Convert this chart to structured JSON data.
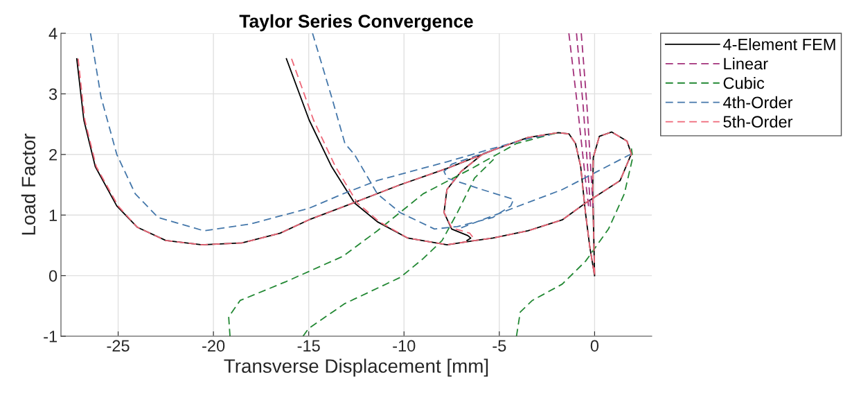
{
  "chart_data": {
    "type": "line",
    "title": "Taylor Series Convergence",
    "xlabel": "Transverse Displacement [mm]",
    "ylabel": "Load Factor",
    "xlim": [
      -28,
      3
    ],
    "ylim": [
      -1,
      4
    ],
    "xticks": [
      -25,
      -20,
      -15,
      -10,
      -5,
      0
    ],
    "yticks": [
      -1,
      0,
      1,
      2,
      3,
      4
    ],
    "grid": true,
    "legend": "right",
    "series": [
      {
        "name": "4-Element FEM",
        "color": "#000000",
        "line_style": "solid",
        "x": [
          -27.17,
          -26.8,
          -26.2,
          -25.07,
          -24.0,
          -22.5,
          -20.6,
          -18.5,
          -16.5,
          -15.0,
          -13.08,
          -10.2,
          -7.74,
          -5.9,
          -5.34,
          -3.5,
          -1.9,
          -1.35,
          -1.0,
          -0.73,
          -0.48,
          -0.25,
          0,
          null,
          -16.17,
          -14.98,
          -13.8,
          -12.6,
          -11.4,
          -9.8,
          -7.74,
          -6.5,
          -5.34,
          -3.5,
          -1.7,
          -0.47,
          1.34,
          1.93,
          1.7,
          0.9,
          0.25,
          -0.07,
          -0.1,
          -0.05,
          0,
          null,
          -6.7,
          -6.5,
          -6.65,
          -7.5,
          -7.9,
          -7.75,
          -7.0,
          -5.9,
          -5.34
        ],
        "values": [
          3.58,
          2.57,
          1.8,
          1.15,
          0.8,
          0.58,
          0.51,
          0.54,
          0.7,
          0.92,
          1.15,
          1.5,
          1.77,
          2.0,
          2.07,
          2.28,
          2.36,
          2.34,
          2.18,
          1.8,
          1.04,
          0.47,
          0,
          null,
          3.58,
          2.57,
          1.8,
          1.2,
          0.89,
          0.62,
          0.51,
          0.57,
          0.62,
          0.74,
          0.92,
          1.2,
          1.57,
          2.01,
          2.22,
          2.37,
          2.3,
          1.95,
          1.42,
          0.7,
          0,
          null,
          0.58,
          0.62,
          0.66,
          0.77,
          1.04,
          1.42,
          1.72,
          2.0,
          2.07
        ]
      },
      {
        "name": "Linear",
        "color": "#a2307a",
        "line_style": "dashed",
        "x": [
          -1.35,
          -0.9,
          -0.45,
          -0.3,
          null,
          -0.95,
          -0.6,
          -0.3,
          -0.2,
          null,
          -0.7,
          -0.4,
          -0.15,
          -0.08
        ],
        "values": [
          4.0,
          2.8,
          1.5,
          1.1,
          null,
          4.0,
          2.8,
          1.5,
          1.1,
          null,
          4.0,
          2.8,
          1.5,
          1.1
        ]
      },
      {
        "name": "Cubic",
        "color": "#228833",
        "line_style": "dashed",
        "x": [
          -19.13,
          -19.2,
          -18.6,
          -16.2,
          -13.2,
          -11.4,
          -9.0,
          -6.5,
          -4.1,
          -2.3,
          -1.9,
          null,
          -15.3,
          -15.0,
          -13.1,
          -10.2,
          -9.0,
          -8.0,
          -7.2,
          -6.3,
          -5.3,
          null,
          -4.1,
          -3.9,
          -3.27,
          -1.7,
          -0.47,
          0.73,
          1.56,
          2.0,
          1.93
        ],
        "values": [
          -1.0,
          -0.68,
          -0.41,
          -0.1,
          0.32,
          0.74,
          1.35,
          1.76,
          2.18,
          2.33,
          2.36,
          null,
          -1.0,
          -0.87,
          -0.46,
          -0.03,
          0.28,
          0.58,
          1.04,
          1.61,
          1.92,
          null,
          -1.0,
          -0.6,
          -0.41,
          -0.14,
          0.24,
          0.77,
          1.35,
          1.95,
          2.1
        ]
      },
      {
        "name": "4th-Order",
        "color": "#4477aa",
        "line_style": "dashed",
        "x": [
          -26.45,
          -25.9,
          -25.07,
          -24.1,
          -22.9,
          -20.5,
          -18.1,
          -15.0,
          -13.2,
          -11.4,
          -7.74,
          -5.34,
          -3.5,
          -2.3,
          null,
          -14.8,
          -13.8,
          -13.1,
          -12.6,
          -11.4,
          -10.2,
          -8.4,
          -7.2,
          -5.34,
          -4.4,
          -4.25,
          -5.9,
          -7.74,
          -7.9,
          -7.5,
          -5.9,
          -4.7,
          null,
          -7.0,
          -1.7,
          1.93
        ],
        "values": [
          4.0,
          2.95,
          2.0,
          1.35,
          0.96,
          0.74,
          0.85,
          1.11,
          1.35,
          1.57,
          1.88,
          2.1,
          2.26,
          2.33,
          null,
          4.0,
          2.95,
          2.18,
          2.0,
          1.35,
          1.04,
          0.77,
          0.81,
          0.96,
          1.15,
          1.26,
          1.42,
          1.61,
          1.72,
          1.84,
          2.01,
          2.14,
          null,
          0.79,
          1.42,
          2.01
        ]
      },
      {
        "name": "5th-Order",
        "color": "#ee6677",
        "line_style": "dashed",
        "x": [
          -27.1,
          -26.75,
          -26.15,
          -25.0,
          -24.0,
          -22.5,
          -20.6,
          -18.5,
          -16.5,
          -15.0,
          -13.08,
          -10.2,
          -7.74,
          -5.9,
          -5.34,
          -3.5,
          -1.9,
          -1.35,
          -1.0,
          -0.73,
          -0.48,
          -0.25,
          0,
          null,
          -15.9,
          -14.75,
          -13.6,
          -12.45,
          -11.3,
          -9.8,
          -7.74,
          -6.5,
          -5.34,
          -3.5,
          -1.7,
          -0.47,
          1.34,
          1.93,
          1.7,
          0.9,
          0.25,
          -0.07,
          -0.1,
          -0.05,
          0,
          null,
          -6.4,
          -6.55,
          -7.5,
          -7.9,
          -7.75,
          -7.0,
          -5.9,
          -5.34
        ],
        "values": [
          3.58,
          2.57,
          1.8,
          1.15,
          0.8,
          0.58,
          0.51,
          0.54,
          0.7,
          0.92,
          1.15,
          1.5,
          1.77,
          2.0,
          2.07,
          2.28,
          2.36,
          2.34,
          2.18,
          1.8,
          1.04,
          0.47,
          0,
          null,
          3.58,
          2.57,
          1.8,
          1.2,
          0.89,
          0.62,
          0.51,
          0.57,
          0.62,
          0.74,
          0.92,
          1.2,
          1.57,
          2.01,
          2.22,
          2.37,
          2.3,
          1.95,
          1.42,
          0.7,
          0,
          null,
          0.64,
          0.7,
          0.79,
          1.04,
          1.42,
          1.72,
          2.0,
          2.07
        ]
      }
    ]
  }
}
